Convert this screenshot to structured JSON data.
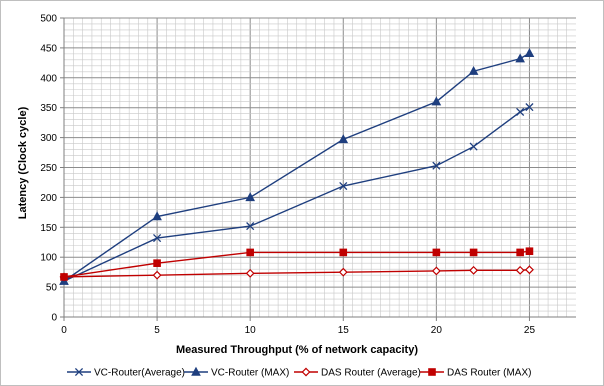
{
  "chart_data": {
    "type": "line",
    "title": "",
    "xlabel": "Measured Throughput (% of network capacity)",
    "ylabel": "Latency (Clock cycle)",
    "xlim": [
      0,
      27.5
    ],
    "ylim": [
      0,
      500
    ],
    "xticks": [
      0,
      5,
      10,
      15,
      20,
      25
    ],
    "yticks": [
      0,
      50,
      100,
      150,
      200,
      250,
      300,
      350,
      400,
      450,
      500
    ],
    "x_minor_step": 0.5,
    "y_minor_step": 10,
    "grid": true,
    "legend_position": "bottom",
    "series": [
      {
        "name": "VC-Router(Average)",
        "color": "#1f3f7f",
        "marker": "x-cross",
        "points": [
          [
            0,
            60
          ],
          [
            5,
            132
          ],
          [
            10,
            152
          ],
          [
            15,
            219
          ],
          [
            20,
            253
          ],
          [
            22,
            285
          ],
          [
            24.5,
            343
          ],
          [
            25,
            351
          ]
        ]
      },
      {
        "name": "VC-Router (MAX)",
        "color": "#1f3f7f",
        "marker": "triangle",
        "points": [
          [
            0,
            60
          ],
          [
            5,
            168
          ],
          [
            10,
            200
          ],
          [
            15,
            297
          ],
          [
            20,
            360
          ],
          [
            22,
            411
          ],
          [
            24.5,
            432
          ],
          [
            25,
            441
          ]
        ]
      },
      {
        "name": "DAS Router (Average)",
        "color": "#c00000",
        "marker": "diamond",
        "points": [
          [
            0,
            67
          ],
          [
            5,
            70
          ],
          [
            10,
            73
          ],
          [
            15,
            75
          ],
          [
            20,
            77
          ],
          [
            22,
            78
          ],
          [
            24.5,
            78
          ],
          [
            25,
            79
          ]
        ]
      },
      {
        "name": "DAS Router (MAX)",
        "color": "#c00000",
        "marker": "square",
        "points": [
          [
            0,
            67
          ],
          [
            5,
            90
          ],
          [
            10,
            108
          ],
          [
            15,
            108
          ],
          [
            20,
            108
          ],
          [
            22,
            108
          ],
          [
            24.5,
            108
          ],
          [
            25,
            110
          ]
        ]
      }
    ]
  }
}
